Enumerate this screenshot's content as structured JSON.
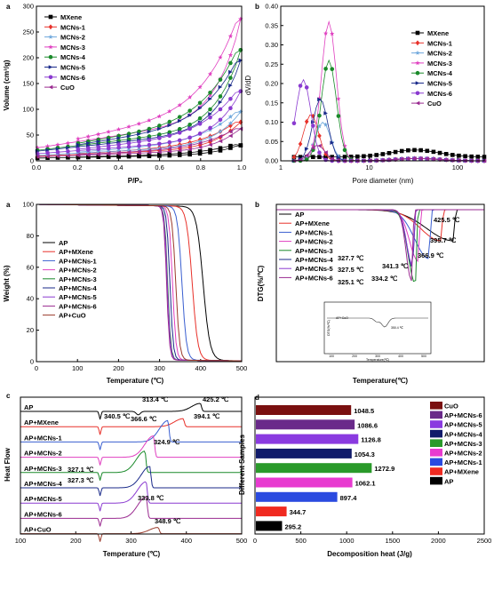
{
  "figure": {
    "panels": [
      "a",
      "b",
      "a",
      "b",
      "c",
      "d"
    ]
  },
  "chart_data": [
    {
      "panel": "a",
      "type": "line",
      "xlabel": "P/P₀",
      "ylabel": "Volume (cm³/g)",
      "xlim": [
        0.0,
        1.0
      ],
      "ylim": [
        0,
        300
      ],
      "xticks": [
        "0.0",
        "0.2",
        "0.4",
        "0.6",
        "0.8",
        "1.0"
      ],
      "yticks": [
        "0",
        "50",
        "100",
        "150",
        "200",
        "250",
        "300"
      ],
      "legend": "top-left",
      "series": [
        {
          "name": "MXene",
          "color": "#000000",
          "marker": "square",
          "final": 30
        },
        {
          "name": "MCNs-1",
          "color": "#e8312a",
          "marker": "diamond",
          "final": 75
        },
        {
          "name": "MCNs-2",
          "color": "#6fa8dc",
          "marker": "star",
          "final": 95
        },
        {
          "name": "MCNs-3",
          "color": "#e040c0",
          "marker": "star",
          "final": 275
        },
        {
          "name": "MCNs-4",
          "color": "#1a8a2a",
          "marker": "circle",
          "final": 215
        },
        {
          "name": "MCNs-5",
          "color": "#1a2a8a",
          "marker": "triangle-right",
          "final": 195
        },
        {
          "name": "MCNs-6",
          "color": "#8a3ad0",
          "marker": "circle",
          "final": 135
        },
        {
          "name": "CuO",
          "color": "#9a2a90",
          "marker": "triangle-left",
          "final": 62
        }
      ]
    },
    {
      "panel": "b",
      "type": "line",
      "xlabel": "Pore diameter (nm)",
      "ylabel": "dV/dD",
      "xscale": "log",
      "ylim": [
        0.0,
        0.4
      ],
      "xticks": [
        "1",
        "10",
        "100"
      ],
      "yticks": [
        "0.00",
        "0.05",
        "0.10",
        "0.15",
        "0.20",
        "0.25",
        "0.30",
        "0.35",
        "0.40"
      ],
      "legend": "top-right",
      "series": [
        {
          "name": "MXene",
          "color": "#000000",
          "peak_x": 2.5,
          "peak": 0.02
        },
        {
          "name": "MCNs-1",
          "color": "#e8312a",
          "peak_x": 2.2,
          "peak": 0.12
        },
        {
          "name": "MCNs-2",
          "color": "#6fa8dc",
          "peak_x": 3.0,
          "peak": 0.1
        },
        {
          "name": "MCNs-3",
          "color": "#e040c0",
          "peak_x": 3.5,
          "peak": 0.36
        },
        {
          "name": "MCNs-4",
          "color": "#1a8a2a",
          "peak_x": 3.5,
          "peak": 0.26
        },
        {
          "name": "MCNs-5",
          "color": "#1a2a8a",
          "peak_x": 2.8,
          "peak": 0.16
        },
        {
          "name": "MCNs-6",
          "color": "#8a3ad0",
          "peak_x": 1.8,
          "peak": 0.21
        },
        {
          "name": "CuO",
          "color": "#9a2a90",
          "peak_x": 2.6,
          "peak": 0.04
        }
      ]
    },
    {
      "panel": "a",
      "type": "line",
      "xlabel": "Temperature (℃)",
      "ylabel": "Weight (%)",
      "xlim": [
        0,
        500
      ],
      "ylim": [
        0,
        100
      ],
      "xticks": [
        "0",
        "100",
        "200",
        "300",
        "400",
        "500"
      ],
      "yticks": [
        "0",
        "20",
        "40",
        "60",
        "80",
        "100"
      ],
      "legend": "center-left",
      "series": [
        {
          "name": "AP",
          "color": "#000000",
          "drop_T": 425
        },
        {
          "name": "AP+MXene",
          "color": "#e8312a",
          "drop_T": 395
        },
        {
          "name": "AP+MCNs-1",
          "color": "#3a5fd0",
          "drop_T": 367
        },
        {
          "name": "AP+MCNs-2",
          "color": "#e040c0",
          "drop_T": 341
        },
        {
          "name": "AP+MCNs-3",
          "color": "#1a8a2a",
          "drop_T": 328
        },
        {
          "name": "AP+MCNs-4",
          "color": "#1a2a8a",
          "drop_T": 334
        },
        {
          "name": "AP+MCNs-5",
          "color": "#8a3ad0",
          "drop_T": 327
        },
        {
          "name": "AP+MCNs-6",
          "color": "#9a2a90",
          "drop_T": 325
        },
        {
          "name": "AP+CuO",
          "color": "#9a3a2a",
          "drop_T": 350
        }
      ]
    },
    {
      "panel": "b",
      "type": "line",
      "xlabel": "Temperature(℃)",
      "ylabel": "DTG(%/℃)",
      "legend": "top-left",
      "series_names": [
        "AP",
        "AP+MXene",
        "AP+MCNs-1",
        "AP+MCNs-2",
        "AP+MCNs-3",
        "AP+MCNs-4",
        "AP+MCNs-5",
        "AP+MCNs-6"
      ],
      "annotations": [
        "425.5 ℃",
        "395.7 ℃",
        "366.9 ℃",
        "341.3 ℃",
        "334.2 ℃",
        "327.7 ℃",
        "327.5 ℃",
        "325.1 ℃"
      ],
      "inset": {
        "legend": "AP+CuO",
        "annotation": "350.4 ℃",
        "xlabel": "Temperature(℃)",
        "ylabel": "DTG(%/℃)",
        "xticks": [
          "100",
          "200",
          "300",
          "400",
          "500"
        ]
      }
    },
    {
      "panel": "c",
      "type": "line",
      "xlabel": "Temperature (℃)",
      "ylabel": "Heat Flow",
      "xlim": [
        100,
        500
      ],
      "xticks": [
        "100",
        "200",
        "300",
        "400",
        "500"
      ],
      "series": [
        {
          "name": "AP",
          "color": "#000000",
          "peak": 425.2
        },
        {
          "name": "AP+MXene",
          "color": "#e8312a",
          "peak": 394.1
        },
        {
          "name": "AP+MCNs-1",
          "color": "#3a5fd0",
          "peak": 366.6
        },
        {
          "name": "AP+MCNs-2",
          "color": "#e040c0",
          "peak": 340.5
        },
        {
          "name": "AP+MCNs-3",
          "color": "#1a8a2a",
          "peak": 324.9
        },
        {
          "name": "AP+MCNs-4",
          "color": "#1a2a8a",
          "peak": 333.8
        },
        {
          "name": "AP+MCNs-5",
          "color": "#8a3ad0",
          "peak": 327.1
        },
        {
          "name": "AP+MCNs-6",
          "color": "#9a2a90",
          "peak": 327.3
        },
        {
          "name": "AP+CuO",
          "color": "#9a3a2a",
          "peak": 348.9
        }
      ],
      "annotations": [
        "313.4 ℃",
        "425.2 ℃",
        "394.1 ℃",
        "340.5 ℃",
        "366.6 ℃",
        "324.9 ℃",
        "327.1 ℃",
        "327.3 ℃",
        "333.8 ℃",
        "348.9 ℃"
      ]
    },
    {
      "panel": "d",
      "type": "bar",
      "orientation": "horizontal",
      "xlabel": "Decomposition heat (J/g)",
      "ylabel": "Different Samples",
      "xlim": [
        0,
        2500
      ],
      "xticks": [
        "0",
        "500",
        "1000",
        "1500",
        "2000",
        "2500"
      ],
      "categories": [
        "CuO",
        "AP+MCNs-6",
        "AP+MCNs-5",
        "AP+MCNs-4",
        "AP+MCNs-3",
        "AP+MCNs-2",
        "AP+MCNs-1",
        "AP+MXene",
        "AP"
      ],
      "values": [
        1048.5,
        1086.6,
        1126.8,
        1054.3,
        1272.9,
        1062.1,
        897.4,
        344.7,
        295.2
      ],
      "value_labels": [
        "1048.5",
        "1086.6",
        "1126.8",
        "1054.3",
        "1272.9",
        "1062.1",
        "897.4",
        "344.7",
        "295.2"
      ],
      "colors": [
        "#7a1010",
        "#6a2a8a",
        "#8a3ae0",
        "#101a6a",
        "#2a9a2a",
        "#e83ad0",
        "#2a4ae0",
        "#f02a20",
        "#000000"
      ],
      "legend": "top-right"
    }
  ]
}
